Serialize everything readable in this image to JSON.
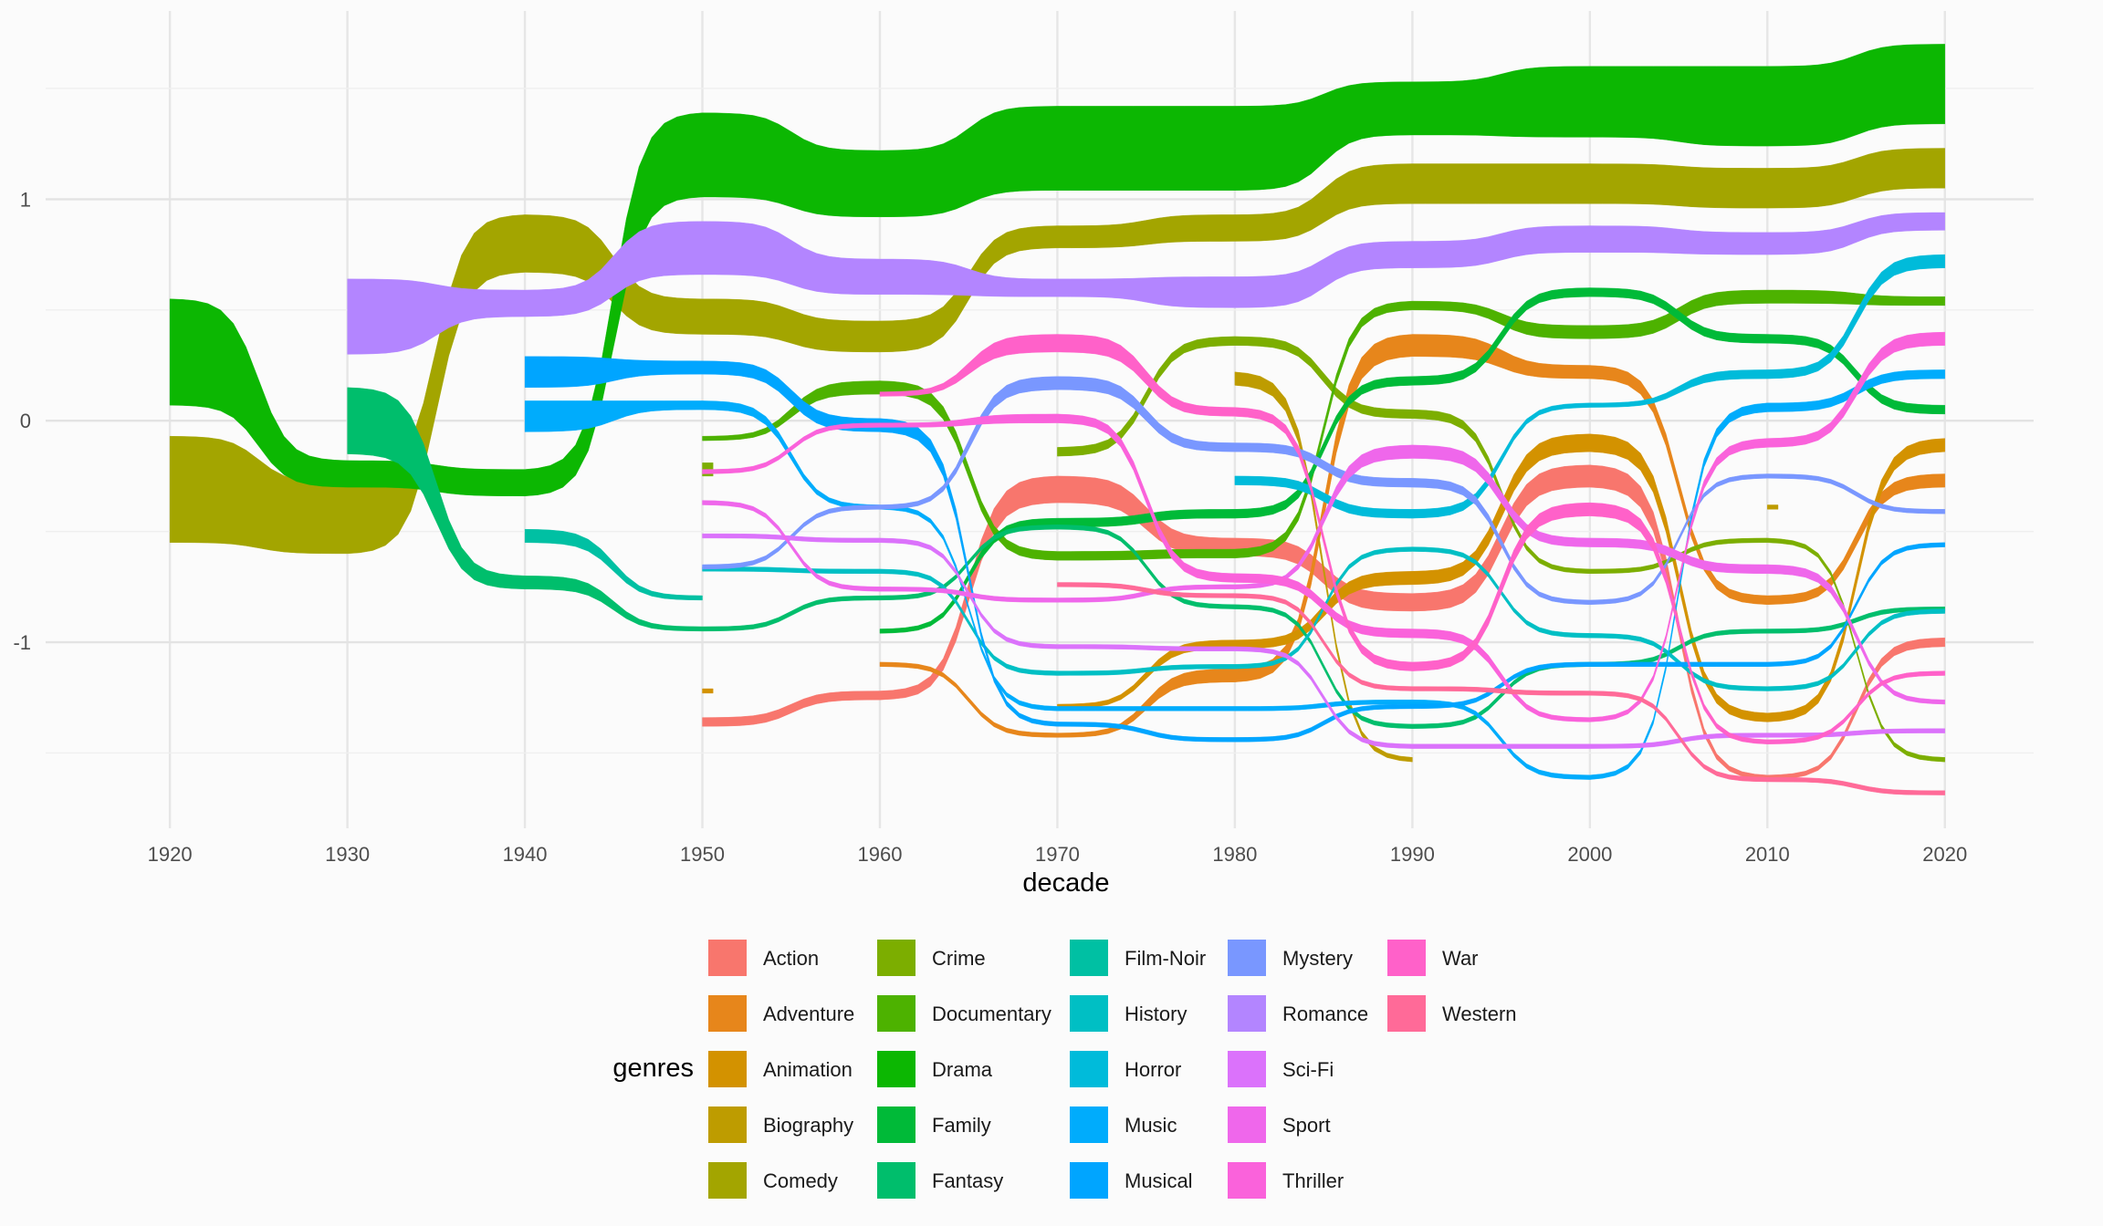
{
  "chart_data": {
    "type": "bump-stream",
    "xlabel": "decade",
    "ylabel": "",
    "x_ticks": [
      1920,
      1930,
      1940,
      1950,
      1960,
      1970,
      1980,
      1990,
      2000,
      2010,
      2020
    ],
    "y_ticks": [
      1,
      0,
      -1
    ],
    "xlim": [
      1913,
      2025
    ],
    "ylim": [
      -1.84,
      1.85
    ],
    "grid": true,
    "legend": {
      "title": "genres",
      "placement": "bottom",
      "columns": 5
    },
    "series": [
      {
        "name": "Action",
        "color": "#F8766D",
        "points": [
          [
            1950,
            -1.36,
            0.02
          ],
          [
            1960,
            -1.24,
            0.02
          ],
          [
            1970,
            -0.31,
            0.06
          ],
          [
            1980,
            -0.57,
            0.04
          ],
          [
            1990,
            -0.82,
            0.04
          ],
          [
            2000,
            -0.25,
            0.05
          ],
          [
            2010,
            -1.61,
            0.01
          ],
          [
            2020,
            -1.0,
            0.02
          ]
        ]
      },
      {
        "name": "Adventure",
        "color": "#E7861B",
        "points": [
          [
            1960,
            -1.1,
            0.01
          ],
          [
            1970,
            -1.42,
            0.01
          ],
          [
            1980,
            -1.15,
            0.03
          ],
          [
            1990,
            0.34,
            0.05
          ],
          [
            2000,
            0.22,
            0.03
          ],
          [
            2010,
            -0.81,
            0.02
          ],
          [
            2020,
            -0.27,
            0.03
          ]
        ]
      },
      {
        "name": "Animation",
        "color": "#D39200",
        "points": [
          [
            1950,
            -1.22,
            0.01
          ],
          [
            1970,
            -1.29,
            0.01
          ],
          [
            1980,
            -1.01,
            0.02
          ],
          [
            1990,
            -0.71,
            0.03
          ],
          [
            2000,
            -0.1,
            0.04
          ],
          [
            2010,
            -1.34,
            0.02
          ],
          [
            2020,
            -0.11,
            0.03
          ]
        ]
      },
      {
        "name": "Biography",
        "color": "#BE9C00",
        "points": [
          [
            1980,
            0.19,
            0.03
          ],
          [
            1990,
            -1.53,
            0.01
          ],
          [
            2010,
            -0.39,
            0.01
          ]
        ]
      },
      {
        "name": "Comedy",
        "color": "#A3A500",
        "points": [
          [
            1920,
            -0.31,
            0.24
          ],
          [
            1930,
            -0.44,
            0.16
          ],
          [
            1940,
            0.8,
            0.13
          ],
          [
            1950,
            0.47,
            0.08
          ],
          [
            1960,
            0.38,
            0.07
          ],
          [
            1970,
            0.83,
            0.05
          ],
          [
            1980,
            0.87,
            0.06
          ],
          [
            1990,
            1.07,
            0.09
          ],
          [
            2000,
            1.07,
            0.09
          ],
          [
            2010,
            1.05,
            0.09
          ],
          [
            2020,
            1.14,
            0.09
          ]
        ]
      },
      {
        "name": "Crime",
        "color": "#7CAE00",
        "points": [
          [
            1950,
            -0.22,
            0.03
          ],
          [
            1970,
            -0.14,
            0.02
          ],
          [
            1980,
            0.36,
            0.02
          ],
          [
            1990,
            0.03,
            0.02
          ],
          [
            2000,
            -0.68,
            0.01
          ],
          [
            2010,
            -0.54,
            0.01
          ],
          [
            2020,
            -1.53,
            0.01
          ]
        ]
      },
      {
        "name": "Documentary",
        "color": "#4DB200",
        "points": [
          [
            1950,
            -0.08,
            0.01
          ],
          [
            1960,
            0.15,
            0.03
          ],
          [
            1970,
            -0.61,
            0.02
          ],
          [
            1980,
            -0.6,
            0.02
          ],
          [
            1990,
            0.52,
            0.02
          ],
          [
            2000,
            0.4,
            0.03
          ],
          [
            2010,
            0.56,
            0.03
          ],
          [
            2020,
            0.54,
            0.02
          ]
        ]
      },
      {
        "name": "Drama",
        "color": "#0CB702",
        "points": [
          [
            1920,
            0.31,
            0.24
          ],
          [
            1930,
            -0.24,
            0.06
          ],
          [
            1940,
            -0.28,
            0.06
          ],
          [
            1950,
            1.2,
            0.19
          ],
          [
            1960,
            1.07,
            0.15
          ],
          [
            1970,
            1.23,
            0.19
          ],
          [
            1980,
            1.23,
            0.19
          ],
          [
            1990,
            1.41,
            0.12
          ],
          [
            2000,
            1.44,
            0.16
          ],
          [
            2010,
            1.42,
            0.18
          ],
          [
            2020,
            1.52,
            0.18
          ]
        ]
      },
      {
        "name": "Family",
        "color": "#00BA38",
        "points": [
          [
            1960,
            -0.95,
            0.01
          ],
          [
            1970,
            -0.46,
            0.02
          ],
          [
            1980,
            -0.42,
            0.02
          ],
          [
            1990,
            0.18,
            0.02
          ],
          [
            2000,
            0.58,
            0.02
          ],
          [
            2010,
            0.37,
            0.02
          ],
          [
            2020,
            0.05,
            0.02
          ]
        ]
      },
      {
        "name": "Fantasy",
        "color": "#00BE6C",
        "points": [
          [
            1930,
            0.0,
            0.15
          ],
          [
            1940,
            -0.73,
            0.03
          ],
          [
            1950,
            -0.94,
            0.01
          ],
          [
            1960,
            -0.8,
            0.01
          ],
          [
            1970,
            -0.48,
            0.01
          ],
          [
            1980,
            -0.84,
            0.01
          ],
          [
            1990,
            -1.38,
            0.01
          ],
          [
            2000,
            -1.1,
            0.01
          ],
          [
            2010,
            -0.95,
            0.01
          ],
          [
            2020,
            -0.85,
            0.01
          ]
        ]
      },
      {
        "name": "Film-Noir",
        "color": "#00C0A3",
        "points": [
          [
            1940,
            -0.52,
            0.03
          ],
          [
            1950,
            -0.8,
            0.01
          ]
        ]
      },
      {
        "name": "History",
        "color": "#00BFC4",
        "points": [
          [
            1950,
            -0.67,
            0.01
          ],
          [
            1960,
            -0.68,
            0.01
          ],
          [
            1970,
            -1.14,
            0.01
          ],
          [
            1980,
            -1.11,
            0.01
          ],
          [
            1990,
            -0.58,
            0.01
          ],
          [
            2000,
            -0.97,
            0.01
          ],
          [
            2010,
            -1.21,
            0.01
          ],
          [
            2020,
            -0.86,
            0.01
          ]
        ]
      },
      {
        "name": "Horror",
        "color": "#00BBDA",
        "points": [
          [
            1980,
            -0.27,
            0.02
          ],
          [
            1990,
            -0.42,
            0.02
          ],
          [
            2000,
            0.07,
            0.01
          ],
          [
            2010,
            0.21,
            0.02
          ],
          [
            2020,
            0.72,
            0.03
          ]
        ]
      },
      {
        "name": "Music",
        "color": "#00ACFC",
        "points": [
          [
            1940,
            0.02,
            0.07
          ],
          [
            1950,
            0.07,
            0.02
          ],
          [
            1960,
            -0.39,
            0.01
          ],
          [
            1970,
            -1.3,
            0.01
          ],
          [
            1980,
            -1.3,
            0.01
          ],
          [
            1990,
            -1.27,
            0.01
          ],
          [
            2000,
            -1.61,
            0.01
          ],
          [
            2010,
            0.06,
            0.02
          ],
          [
            2020,
            0.21,
            0.02
          ]
        ]
      },
      {
        "name": "Musical",
        "color": "#00A5FF",
        "points": [
          [
            1940,
            0.22,
            0.07
          ],
          [
            1950,
            0.24,
            0.03
          ],
          [
            1960,
            -0.02,
            0.03
          ],
          [
            1970,
            -1.37,
            0.01
          ],
          [
            1980,
            -1.44,
            0.01
          ],
          [
            1990,
            -1.29,
            0.01
          ],
          [
            2000,
            -1.1,
            0.01
          ],
          [
            2010,
            -1.1,
            0.01
          ],
          [
            2020,
            -0.56,
            0.01
          ]
        ]
      },
      {
        "name": "Mystery",
        "color": "#7997FF",
        "points": [
          [
            1950,
            -0.66,
            0.01
          ],
          [
            1960,
            -0.39,
            0.01
          ],
          [
            1970,
            0.17,
            0.03
          ],
          [
            1980,
            -0.12,
            0.02
          ],
          [
            1990,
            -0.28,
            0.02
          ],
          [
            2000,
            -0.82,
            0.01
          ],
          [
            2010,
            -0.25,
            0.01
          ],
          [
            2020,
            -0.41,
            0.01
          ]
        ]
      },
      {
        "name": "Romance",
        "color": "#B385FF",
        "points": [
          [
            1930,
            0.47,
            0.17
          ],
          [
            1940,
            0.53,
            0.06
          ],
          [
            1950,
            0.78,
            0.12
          ],
          [
            1960,
            0.65,
            0.08
          ],
          [
            1970,
            0.6,
            0.04
          ],
          [
            1980,
            0.58,
            0.07
          ],
          [
            1990,
            0.75,
            0.06
          ],
          [
            2000,
            0.82,
            0.06
          ],
          [
            2010,
            0.8,
            0.05
          ],
          [
            2020,
            0.9,
            0.04
          ]
        ]
      },
      {
        "name": "Sci-Fi",
        "color": "#DB72FB",
        "points": [
          [
            1950,
            -0.52,
            0.01
          ],
          [
            1960,
            -0.54,
            0.01
          ],
          [
            1970,
            -1.02,
            0.01
          ],
          [
            1980,
            -1.03,
            0.01
          ],
          [
            1990,
            -1.47,
            0.01
          ],
          [
            2000,
            -1.47,
            0.01
          ],
          [
            2010,
            -1.42,
            0.01
          ],
          [
            2020,
            -1.4,
            0.01
          ]
        ]
      },
      {
        "name": "Sport",
        "color": "#EF67EB",
        "points": [
          [
            1950,
            -0.37,
            0.01
          ],
          [
            1960,
            -0.76,
            0.01
          ],
          [
            1970,
            -0.81,
            0.01
          ],
          [
            1980,
            -0.75,
            0.01
          ],
          [
            1990,
            -0.14,
            0.03
          ],
          [
            2000,
            -0.55,
            0.02
          ],
          [
            2010,
            -0.67,
            0.02
          ],
          [
            2020,
            -1.27,
            0.01
          ]
        ]
      },
      {
        "name": "Thriller",
        "color": "#FA62DB",
        "points": [
          [
            1950,
            -0.23,
            0.01
          ],
          [
            1960,
            -0.02,
            0.01
          ],
          [
            1970,
            0.01,
            0.02
          ],
          [
            1980,
            -0.71,
            0.02
          ],
          [
            1990,
            -0.96,
            0.02
          ],
          [
            2000,
            -1.35,
            0.01
          ],
          [
            2010,
            -0.1,
            0.02
          ],
          [
            2020,
            0.37,
            0.03
          ]
        ]
      },
      {
        "name": "War",
        "color": "#FF61C9",
        "points": [
          [
            1960,
            0.12,
            0.01
          ],
          [
            1970,
            0.35,
            0.04
          ],
          [
            1980,
            0.04,
            0.02
          ],
          [
            1990,
            -1.11,
            0.02
          ],
          [
            2000,
            -0.4,
            0.03
          ],
          [
            2010,
            -1.45,
            0.01
          ],
          [
            2020,
            -1.14,
            0.01
          ]
        ]
      },
      {
        "name": "Western",
        "color": "#FF6A98",
        "points": [
          [
            1970,
            -0.74,
            0.01
          ],
          [
            1980,
            -0.79,
            0.01
          ],
          [
            1990,
            -1.21,
            0.01
          ],
          [
            2000,
            -1.23,
            0.01
          ],
          [
            2010,
            -1.62,
            0.01
          ],
          [
            2020,
            -1.68,
            0.01
          ]
        ]
      }
    ]
  }
}
